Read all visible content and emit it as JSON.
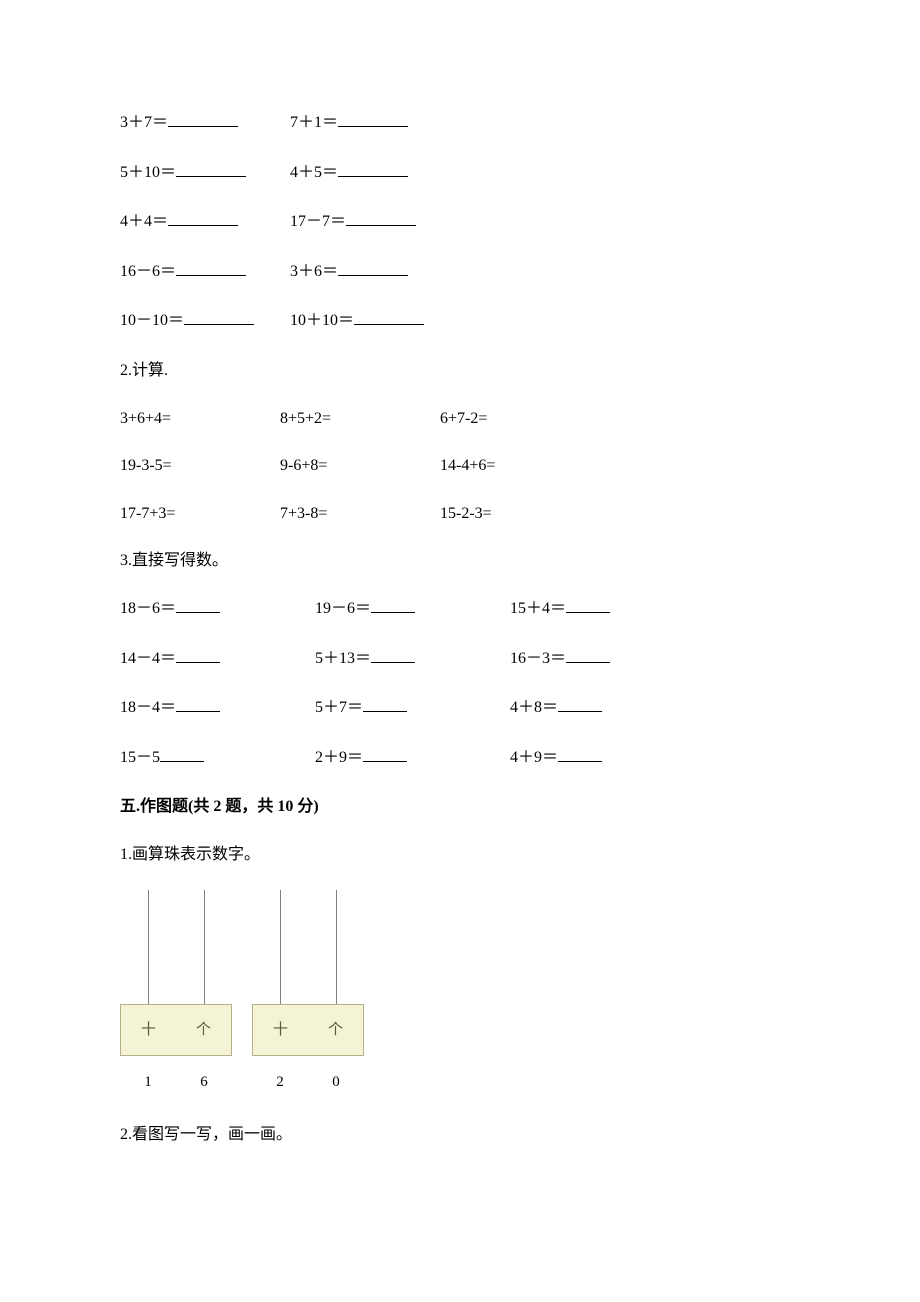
{
  "section1": {
    "pairs": [
      {
        "a": "3＋7＝",
        "b": "7＋1＝"
      },
      {
        "a": "5＋10＝",
        "b": "4＋5＝"
      },
      {
        "a": "4＋4＝",
        "b": "17－7＝"
      },
      {
        "a": "16－6＝",
        "b": "3＋6＝"
      },
      {
        "a": "10－10＝",
        "b": "10＋10＝"
      }
    ]
  },
  "section2": {
    "prompt": "2.计算.",
    "rows": [
      {
        "a": "3+6+4=",
        "b": "8+5+2=",
        "c": "6+7-2="
      },
      {
        "a": "19-3-5=",
        "b": "9-6+8=",
        "c": "14-4+6="
      },
      {
        "a": "17-7+3=",
        "b": "7+3-8=",
        "c": "15-2-3="
      }
    ]
  },
  "section3": {
    "prompt": "3.直接写得数。",
    "rows": [
      {
        "a": "18－6＝",
        "b": "19－6＝",
        "c": "15＋4＝"
      },
      {
        "a": "14－4＝",
        "b": "5＋13＝",
        "c": "16－3＝"
      },
      {
        "a": "18－4＝",
        "b": "5＋7＝",
        "c": "4＋8＝"
      },
      {
        "a": "15－5",
        "b": "2＋9＝",
        "c": "4＋9＝"
      }
    ]
  },
  "section5": {
    "heading": "五.作图题(共 2 题，共 10 分)",
    "q1_prompt": "1.画算珠表示数字。",
    "q2_prompt": "2.看图写一写，画一画。",
    "abacus": {
      "box_bg": "#f5f3d5",
      "box_border": "#b5b186",
      "rod_color": "#808080",
      "tens_label": "十",
      "ones_label": "个",
      "units": [
        {
          "left_num": "1",
          "right_num": "6"
        },
        {
          "left_num": "2",
          "right_num": "0"
        }
      ]
    }
  }
}
